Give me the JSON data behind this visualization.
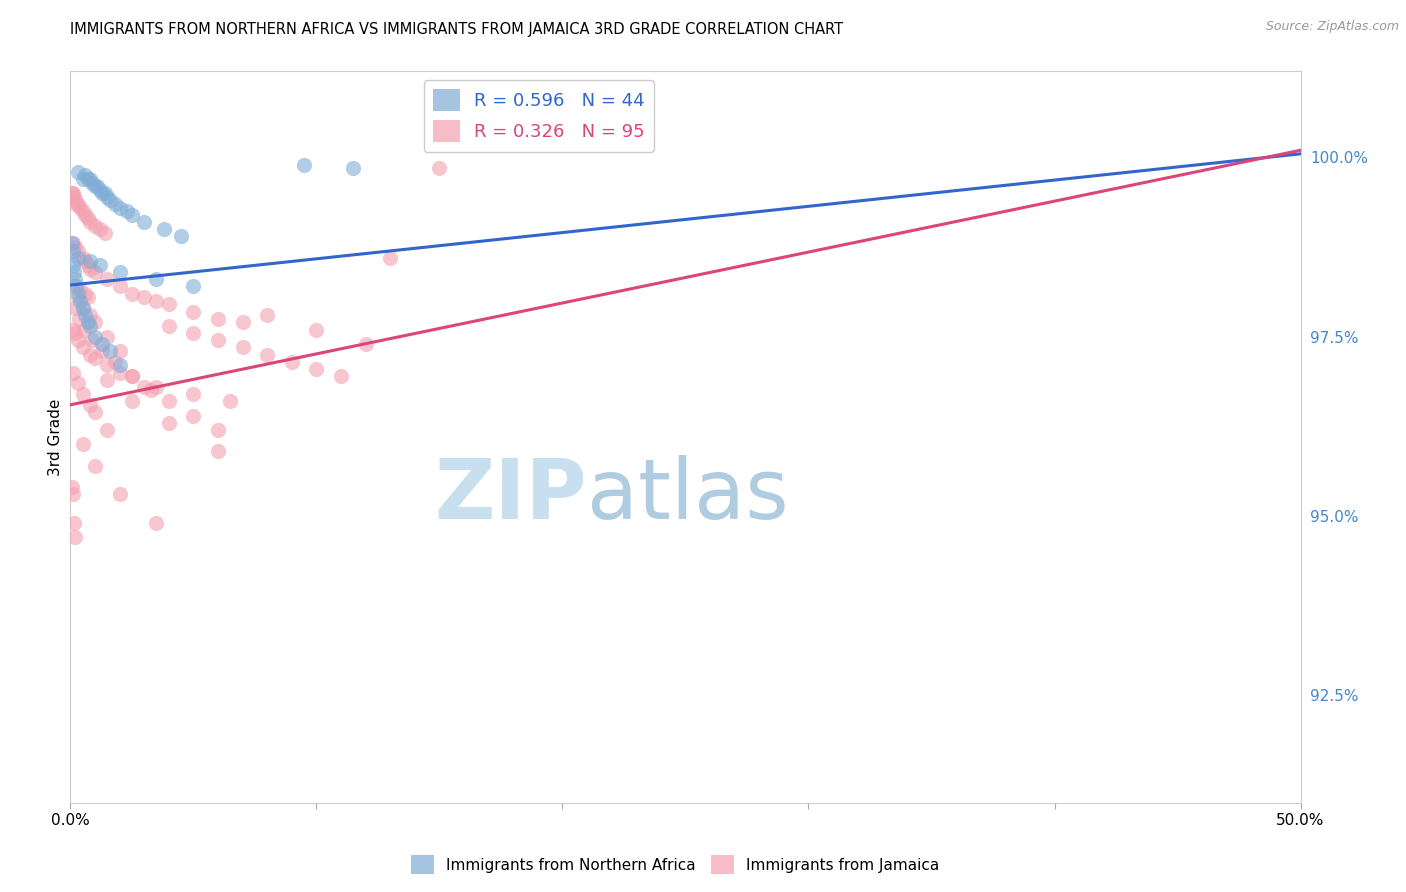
{
  "title": "IMMIGRANTS FROM NORTHERN AFRICA VS IMMIGRANTS FROM JAMAICA 3RD GRADE CORRELATION CHART",
  "source": "Source: ZipAtlas.com",
  "ylabel": "3rd Grade",
  "right_yticks": [
    100.0,
    97.5,
    95.0,
    92.5
  ],
  "right_ytick_labels": [
    "100.0%",
    "97.5%",
    "95.0%",
    "92.5%"
  ],
  "xlim": [
    0.0,
    50.0
  ],
  "ylim": [
    91.0,
    101.2
  ],
  "legend_blue_r": "R = 0.596",
  "legend_blue_n": "N = 44",
  "legend_pink_r": "R = 0.326",
  "legend_pink_n": "N = 95",
  "blue_color": "#7facd6",
  "pink_color": "#f4a0b0",
  "blue_line_color": "#3366cc",
  "pink_line_color": "#dd4477",
  "marker_size": 120,
  "blue_scatter_x": [
    0.3,
    0.5,
    0.6,
    0.7,
    0.8,
    0.9,
    1.0,
    1.1,
    1.2,
    1.3,
    1.4,
    1.5,
    1.6,
    1.8,
    2.0,
    2.3,
    2.5,
    3.0,
    3.8,
    4.5,
    0.1,
    0.15,
    0.2,
    0.25,
    0.3,
    0.4,
    0.5,
    0.6,
    0.7,
    0.8,
    1.0,
    1.3,
    1.6,
    2.0,
    9.5,
    11.5,
    0.05,
    0.1,
    0.3,
    0.8,
    1.2,
    2.0,
    3.5,
    5.0
  ],
  "blue_scatter_y": [
    99.8,
    99.7,
    99.75,
    99.7,
    99.7,
    99.65,
    99.6,
    99.6,
    99.55,
    99.5,
    99.5,
    99.45,
    99.4,
    99.35,
    99.3,
    99.25,
    99.2,
    99.1,
    99.0,
    98.9,
    98.5,
    98.4,
    98.3,
    98.2,
    98.1,
    98.0,
    97.9,
    97.8,
    97.7,
    97.65,
    97.5,
    97.4,
    97.3,
    97.1,
    99.9,
    99.85,
    98.8,
    98.7,
    98.6,
    98.55,
    98.5,
    98.4,
    98.3,
    98.2
  ],
  "pink_scatter_x": [
    0.05,
    0.1,
    0.15,
    0.2,
    0.25,
    0.3,
    0.4,
    0.5,
    0.6,
    0.7,
    0.8,
    1.0,
    1.2,
    1.4,
    0.1,
    0.2,
    0.3,
    0.5,
    0.6,
    0.7,
    0.8,
    1.0,
    1.5,
    2.0,
    2.5,
    3.0,
    3.5,
    4.0,
    5.0,
    6.0,
    7.0,
    0.15,
    0.3,
    0.5,
    0.8,
    1.0,
    1.5,
    2.0,
    0.1,
    0.2,
    0.3,
    0.5,
    0.8,
    1.0,
    1.5,
    2.5,
    3.5,
    5.0,
    6.5,
    0.1,
    0.3,
    0.5,
    0.8,
    1.0,
    1.5,
    0.05,
    0.1,
    0.15,
    0.2,
    4.0,
    5.0,
    6.0,
    7.0,
    8.0,
    9.0,
    10.0,
    11.0,
    13.0,
    2.0,
    3.0,
    4.0,
    5.0,
    6.0,
    1.5,
    2.5,
    4.0,
    6.0,
    0.5,
    1.0,
    2.0,
    3.5,
    8.0,
    10.0,
    12.0,
    0.4,
    0.6,
    0.7,
    15.0,
    0.2,
    0.35,
    0.55,
    0.9,
    1.3,
    1.8,
    2.5,
    3.3
  ],
  "pink_scatter_y": [
    99.5,
    99.5,
    99.45,
    99.4,
    99.35,
    99.35,
    99.3,
    99.25,
    99.2,
    99.15,
    99.1,
    99.05,
    99.0,
    98.95,
    98.8,
    98.75,
    98.7,
    98.6,
    98.55,
    98.5,
    98.45,
    98.4,
    98.3,
    98.2,
    98.1,
    98.05,
    98.0,
    97.95,
    97.85,
    97.75,
    97.7,
    98.2,
    98.05,
    97.9,
    97.8,
    97.7,
    97.5,
    97.3,
    97.6,
    97.55,
    97.45,
    97.35,
    97.25,
    97.2,
    97.1,
    96.95,
    96.8,
    96.7,
    96.6,
    97.0,
    96.85,
    96.7,
    96.55,
    96.45,
    96.2,
    95.4,
    95.3,
    94.9,
    94.7,
    97.65,
    97.55,
    97.45,
    97.35,
    97.25,
    97.15,
    97.05,
    96.95,
    98.6,
    97.0,
    96.8,
    96.6,
    96.4,
    96.2,
    96.9,
    96.6,
    96.3,
    95.9,
    96.0,
    95.7,
    95.3,
    94.9,
    97.8,
    97.6,
    97.4,
    98.15,
    98.1,
    98.05,
    99.85,
    97.9,
    97.75,
    97.6,
    97.45,
    97.3,
    97.15,
    96.95,
    96.75
  ],
  "blue_line_x0": 0.0,
  "blue_line_x1": 50.0,
  "blue_line_y0": 98.22,
  "blue_line_y1": 100.05,
  "pink_line_x0": 0.0,
  "pink_line_x1": 50.0,
  "pink_line_y0": 96.55,
  "pink_line_y1": 100.1,
  "watermark_zip": "ZIP",
  "watermark_atlas": "atlas",
  "watermark_zip_color": "#c8dff0",
  "watermark_atlas_color": "#b0cce0",
  "background_color": "#ffffff",
  "grid_color": "#dddddd",
  "xtick_positions": [
    0,
    10,
    20,
    30,
    40,
    50
  ],
  "xtick_labels": [
    "0.0%",
    "",
    "",
    "",
    "",
    "50.0%"
  ]
}
